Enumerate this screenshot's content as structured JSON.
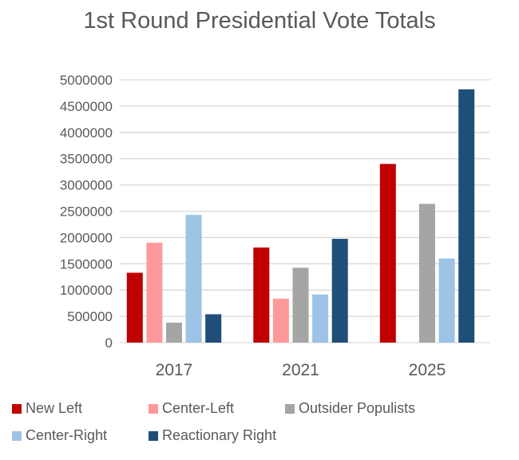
{
  "chart_data": {
    "type": "bar",
    "title": "1st Round Presidential Vote Totals",
    "xlabel": "",
    "ylabel": "",
    "categories": [
      "2017",
      "2021",
      "2025"
    ],
    "ylim": [
      0,
      5000000
    ],
    "yticks": [
      "0",
      "500000",
      "1000000",
      "1500000",
      "2000000",
      "2500000",
      "3000000",
      "3500000",
      "4000000",
      "4500000",
      "5000000"
    ],
    "grid": true,
    "legend_position": "bottom",
    "series": [
      {
        "name": "New Left",
        "color": "#C00000",
        "values": [
          1330000,
          1810000,
          3400000
        ]
      },
      {
        "name": "Center-Left",
        "color": "#FF9999",
        "values": [
          1900000,
          835000,
          0
        ]
      },
      {
        "name": "Outsider Populists",
        "color": "#A5A5A5",
        "values": [
          380000,
          1425000,
          2640000
        ]
      },
      {
        "name": "Center-Right",
        "color": "#9DC3E6",
        "values": [
          2430000,
          915000,
          1600000
        ]
      },
      {
        "name": "Reactionary Right",
        "color": "#1F4E79",
        "values": [
          540000,
          1975000,
          4820000
        ]
      }
    ]
  }
}
